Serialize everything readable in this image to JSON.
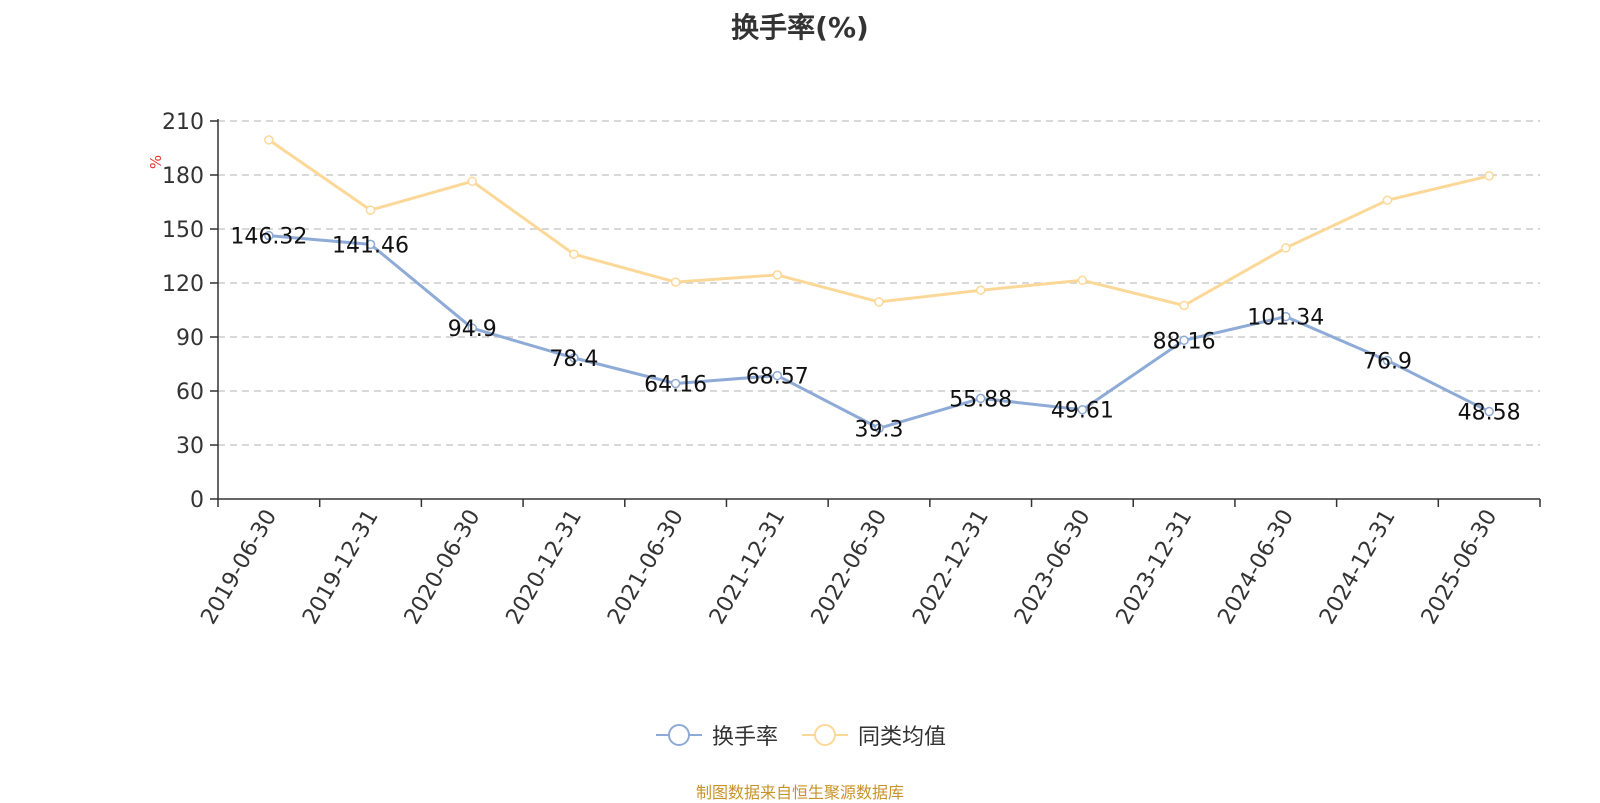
{
  "title": "换手率(%)",
  "source_note": "制图数据来自恒生聚源数据库",
  "legend": [
    {
      "label": "换手率",
      "color": "#8eaad6"
    },
    {
      "label": "同类均值",
      "color": "#fcd898"
    }
  ],
  "chart_data": {
    "type": "line",
    "title": "换手率(%)",
    "ylabel": "%",
    "ylim": [
      0,
      210
    ],
    "yticks": [
      0,
      30,
      60,
      90,
      120,
      150,
      180,
      210
    ],
    "grid": true,
    "legend_position": "bottom",
    "categories": [
      "2019-06-30",
      "2019-12-31",
      "2020-06-30",
      "2020-12-31",
      "2021-06-30",
      "2021-12-31",
      "2022-06-30",
      "2022-12-31",
      "2023-06-30",
      "2023-12-31",
      "2024-06-30",
      "2024-12-31",
      "2025-06-30"
    ],
    "series": [
      {
        "name": "换手率",
        "color": "#8eaad6",
        "values": [
          146.32,
          141.46,
          94.9,
          78.4,
          64.16,
          68.57,
          39.3,
          55.88,
          49.61,
          88.16,
          101.34,
          76.9,
          48.58
        ],
        "labels": [
          "146.32",
          "141.46",
          "94.9",
          "78.4",
          "64.16",
          "68.57",
          "39.3",
          "55.88",
          "49.61",
          "88.16",
          "101.34",
          "76.9",
          "48.58"
        ]
      },
      {
        "name": "同类均值",
        "color": "#fcd898",
        "values": [
          199.5,
          160.5,
          176.5,
          136,
          120.5,
          124.5,
          109.5,
          116,
          121.5,
          107.5,
          139.5,
          166,
          179.5
        ]
      }
    ]
  }
}
